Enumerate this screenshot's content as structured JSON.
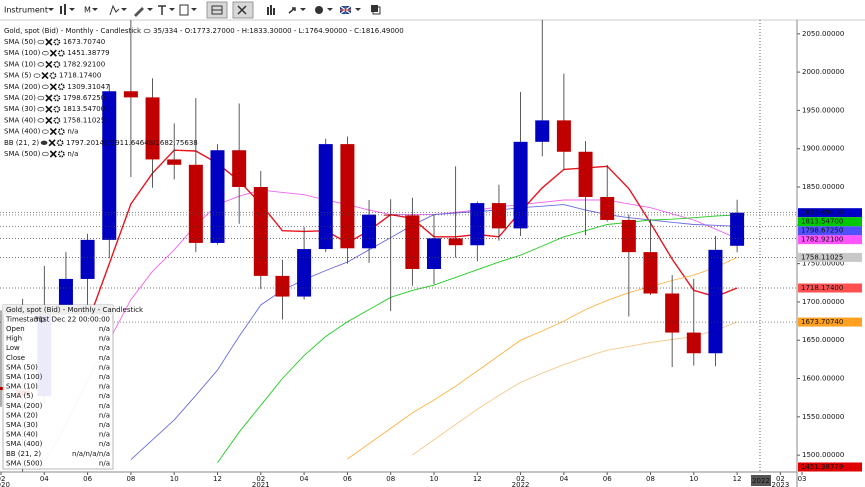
{
  "toolbar": {
    "instrument": "Instrument",
    "period": "M"
  },
  "chart_data": {
    "type": "candlestick",
    "header": "Gold, spot (Bid) - Monthly - Candlestick",
    "ohlc_text": "35/334 - O:1773.27000 - H:1833.30000 - L:1764.90000 - C:1816.49000",
    "categories": [
      "02",
      null,
      "04",
      null,
      "06",
      null,
      "08",
      null,
      "10",
      null,
      "12",
      null,
      "02",
      null,
      "04",
      null,
      "06",
      null,
      "08",
      null,
      "10",
      null,
      "12",
      null,
      "02",
      null,
      "04",
      null,
      "06",
      null,
      "08",
      null,
      "10",
      null,
      "12",
      null,
      "02",
      "03"
    ],
    "category_years": [
      "2020",
      null,
      null,
      null,
      null,
      null,
      null,
      null,
      null,
      null,
      null,
      null,
      "2021",
      null,
      null,
      null,
      null,
      null,
      null,
      null,
      null,
      null,
      null,
      null,
      "2022",
      null,
      null,
      null,
      null,
      null,
      null,
      null,
      null,
      null,
      null,
      null,
      "2023",
      null
    ],
    "open": [
      1589,
      1585,
      1577,
      1687,
      1730,
      1781,
      1975,
      1967,
      1886,
      1879,
      1777,
      1898,
      1850,
      1734,
      1707,
      1769,
      1906,
      1770,
      1814,
      1813,
      1743,
      1783,
      1774,
      1829,
      1796,
      1909,
      1937,
      1896,
      1837,
      1807,
      1765,
      1711,
      1660,
      1633,
      1773.27,
      null,
      null,
      null
    ],
    "high": [
      1689,
      1704,
      1747,
      1765,
      1789,
      1984,
      2075,
      1992,
      1933,
      1966,
      1906,
      1959,
      1871,
      1755,
      1798,
      1913,
      1916,
      1833,
      1834,
      1836,
      1814,
      1877,
      1831,
      1853,
      1974,
      2070,
      1998,
      1910,
      1879,
      1814,
      1808,
      1735,
      1730,
      1786,
      1833.3,
      null,
      null,
      null
    ],
    "low": [
      1563,
      1451,
      1567,
      1671,
      1670,
      1757,
      1863,
      1849,
      1860,
      1765,
      1775,
      1802,
      1717,
      1677,
      1703,
      1765,
      1750,
      1751,
      1688,
      1721,
      1723,
      1758,
      1753,
      1780,
      1786,
      1890,
      1872,
      1787,
      1805,
      1681,
      1709,
      1615,
      1617,
      1616,
      1764.9,
      null,
      null,
      null
    ],
    "close": [
      1585,
      1577,
      1687,
      1730,
      1781,
      1975,
      1967,
      1886,
      1879,
      1777,
      1898,
      1850,
      1734,
      1707,
      1769,
      1906,
      1770,
      1814,
      1813,
      1743,
      1783,
      1774,
      1829,
      1796,
      1909,
      1937,
      1896,
      1837,
      1807,
      1765,
      1711,
      1660,
      1633,
      1768,
      1816.49,
      null,
      null,
      null
    ],
    "bull_color": "#0000c0",
    "bear_color": "#c00000",
    "last_price_label": "1816.49000",
    "last_price_color": "#0000c8",
    "ylim": [
      1478,
      2068
    ],
    "yticks": [
      {
        "value": 1500,
        "label": "1500.00000"
      },
      {
        "value": 1550,
        "label": "1550.00000"
      },
      {
        "value": 1600,
        "label": "1600.00000"
      },
      {
        "value": 1650,
        "label": "1650.00000"
      },
      {
        "value": 1700,
        "label": "1700.00000"
      },
      {
        "value": 1750,
        "label": "1750.00000"
      },
      {
        "value": 1800,
        "label": "1800.00000"
      },
      {
        "value": 1850,
        "label": "1850.00000"
      },
      {
        "value": 1900,
        "label": "1900.00000"
      },
      {
        "value": 1950,
        "label": "1950.00000"
      },
      {
        "value": 2000,
        "label": "2000.00000"
      },
      {
        "value": 2050,
        "label": "2050.00000"
      }
    ],
    "cursor_label": "2022",
    "indicators": [
      {
        "name": "SMA (50)",
        "value_label": "1673.70740",
        "color": "#f3c98f",
        "tag_color": "#ffa020",
        "values": [
          null,
          null,
          null,
          null,
          null,
          null,
          null,
          null,
          null,
          null,
          null,
          null,
          null,
          null,
          null,
          null,
          null,
          null,
          null,
          1500,
          1520,
          1540,
          1560,
          1578,
          1595,
          1607,
          1618,
          1628,
          1637,
          1642,
          1647,
          1651,
          1655,
          1663,
          1673.7074,
          null,
          null,
          null
        ]
      },
      {
        "name": "SMA (100)",
        "value_label": "1451.38779",
        "tag_color": "#e00000"
      },
      {
        "name": "SMA (10)",
        "value_label": "1782.92100",
        "color": "#ee66ee",
        "tag_color": "#ff55ff",
        "values": [
          null,
          null,
          1490,
          1540,
          1598,
          1650,
          1703,
          1740,
          1768,
          1800,
          1827,
          1838,
          1846,
          1843,
          1840,
          1833,
          1827,
          1820,
          1814,
          1814,
          1814,
          1817,
          1820,
          1824,
          1827,
          1830,
          1833,
          1833,
          1833,
          1828,
          1823,
          1815,
          1807,
          1795,
          1782.921,
          null,
          null,
          null
        ]
      },
      {
        "name": "SMA (5)",
        "value_label": "1718.17400",
        "color": "#e8141e",
        "tag_color": "#ff5050",
        "values": [
          null,
          null,
          null,
          null,
          1672,
          1750,
          1828,
          1868,
          1898,
          1897,
          1881,
          1858,
          1828,
          1793,
          1792,
          1793,
          1777,
          1793,
          1814,
          1809,
          1785,
          1785,
          1788,
          1785,
          1818,
          1849,
          1873,
          1875,
          1877,
          1848,
          1803,
          1756,
          1715,
          1707,
          1718.174,
          null,
          null,
          null
        ]
      },
      {
        "name": "SMA (200)",
        "value_label": "1309.31047"
      },
      {
        "name": "SMA (20)",
        "value_label": "1798.67250",
        "color": "#6b6bdd",
        "tag_color": "#5050ff",
        "values": [
          null,
          null,
          null,
          null,
          null,
          null,
          1494,
          1520,
          1546,
          1578,
          1611,
          1655,
          1696,
          1715,
          1729,
          1741,
          1752,
          1768,
          1784,
          1800,
          1814,
          1816,
          1818,
          1820,
          1823,
          1825,
          1827,
          1820,
          1814,
          1810,
          1807,
          1804,
          1801,
          1800,
          1798.6725,
          null,
          null,
          null
        ]
      },
      {
        "name": "SMA (30)",
        "value_label": "1813.54700",
        "color": "#22cc22",
        "tag_color": "#00c800",
        "values": [
          null,
          null,
          null,
          null,
          null,
          null,
          null,
          null,
          null,
          null,
          1490,
          1530,
          1565,
          1600,
          1630,
          1655,
          1674,
          1690,
          1706,
          1715,
          1722,
          1732,
          1742,
          1752,
          1761,
          1773,
          1785,
          1793,
          1801,
          1804,
          1807,
          1808,
          1810,
          1812,
          1813.547,
          null,
          null,
          null
        ]
      },
      {
        "name": "SMA (40)",
        "value_label": "1758.11025",
        "color": "#ffb347",
        "tag_color": "#c8c8c8",
        "values": [
          null,
          null,
          null,
          null,
          null,
          null,
          null,
          null,
          null,
          null,
          null,
          null,
          null,
          null,
          null,
          null,
          1495,
          1515,
          1535,
          1555,
          1572,
          1590,
          1610,
          1630,
          1650,
          1662,
          1675,
          1690,
          1702,
          1712,
          1720,
          1728,
          1735,
          1745,
          1758.11025,
          null,
          null,
          null
        ]
      },
      {
        "name": "SMA (400)",
        "value_label": "n/a"
      },
      {
        "name": "BB (21, 2)",
        "value_label": "1797.20143/1911.64648/1682.75638"
      },
      {
        "name": "SMA (500)",
        "value_label": "n/a"
      }
    ],
    "info_box": {
      "title": "Gold, spot (Bid) - Monthly - Candlestick",
      "rows": [
        [
          "Timestamp",
          "31st Dec 22 00:00:00"
        ],
        [
          "Open",
          "n/a"
        ],
        [
          "High",
          "n/a"
        ],
        [
          "Low",
          "n/a"
        ],
        [
          "Close",
          "n/a"
        ],
        [
          "SMA (50)",
          "n/a"
        ],
        [
          "SMA (100)",
          "n/a"
        ],
        [
          "SMA (10)",
          "n/a"
        ],
        [
          "SMA (5)",
          "n/a"
        ],
        [
          "SMA (200)",
          "n/a"
        ],
        [
          "SMA (20)",
          "n/a"
        ],
        [
          "SMA (30)",
          "n/a"
        ],
        [
          "SMA (40)",
          "n/a"
        ],
        [
          "SMA (400)",
          "n/a"
        ],
        [
          "BB (21, 2)",
          "n/a/n/a/n/a"
        ],
        [
          "SMA (500)",
          "n/a"
        ]
      ]
    }
  }
}
